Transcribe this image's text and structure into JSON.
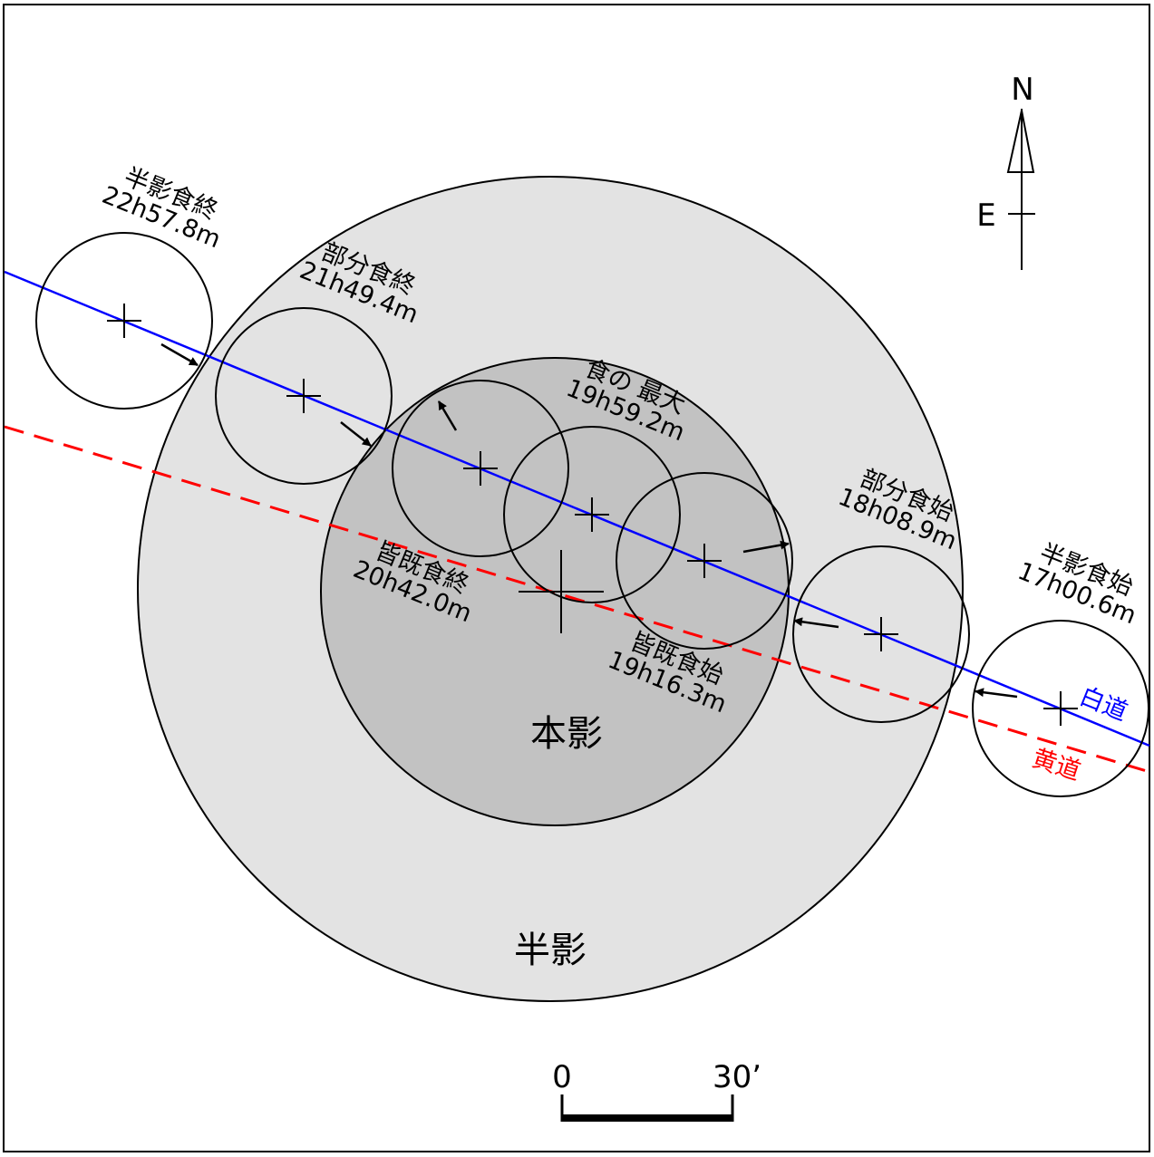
{
  "labels": {
    "penumbra": "半影",
    "umbra": "本影",
    "moon_path": "白道",
    "ecliptic": "黄道"
  },
  "compass": {
    "north": "N",
    "east": "E"
  },
  "scale_bar": {
    "start": "0",
    "end": "30’"
  },
  "events": {
    "penumbral_end": {
      "name": "半影食終",
      "time": "22h57.8m"
    },
    "partial_end": {
      "name": "部分食終",
      "time": "21h49.4m"
    },
    "maximum": {
      "name": "食の 最大",
      "time": "19h59.2m"
    },
    "total_end": {
      "name": "皆既食終",
      "time": "20h42.0m"
    },
    "total_begin": {
      "name": "皆既食始",
      "time": "19h16.3m"
    },
    "partial_begin": {
      "name": "部分食始",
      "time": "18h08.9m"
    },
    "penumbral_begin": {
      "name": "半影食始",
      "time": "17h00.6m"
    }
  },
  "colors": {
    "penumbra": "#e3e3e3",
    "umbra": "#c2c2c2",
    "moon_path": "#0000ff",
    "ecliptic": "#ff0000"
  }
}
